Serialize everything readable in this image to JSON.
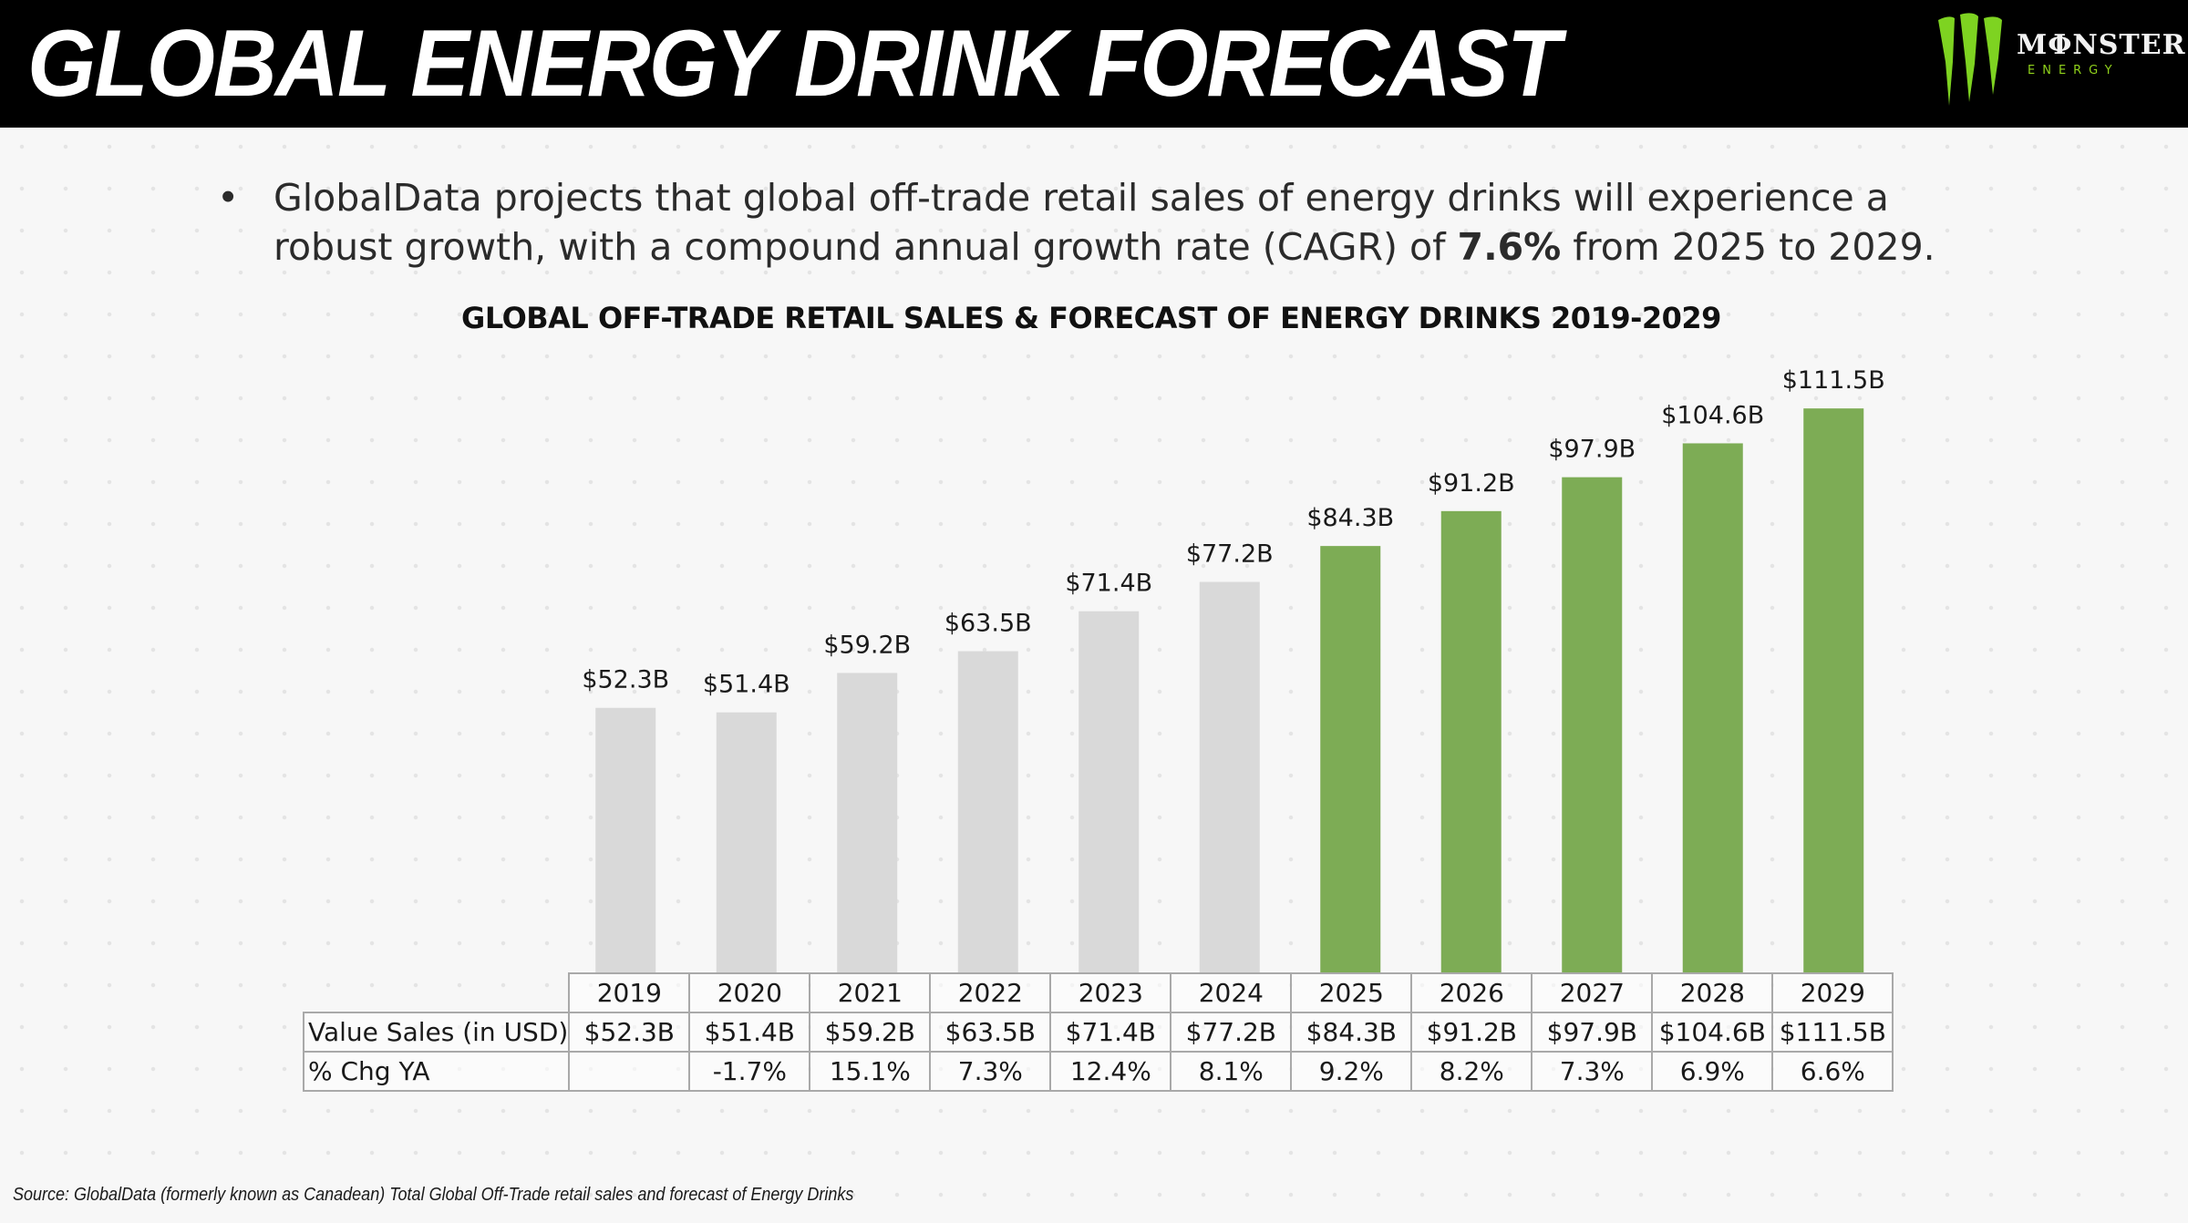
{
  "header": {
    "title": "GLOBAL ENERGY DRINK FORECAST",
    "logo": {
      "icon": "monster-claw-icon",
      "wordmark": "MΦNSTER",
      "sub": "ENERGY"
    }
  },
  "bullet": {
    "text_before": "GlobalData projects that global off-trade retail sales of energy drinks will experience a robust growth, with a compound annual growth rate (CAGR) of ",
    "highlight": "7.6%",
    "text_after": " from 2025 to 2029."
  },
  "chart_data": {
    "type": "bar",
    "title": "GLOBAL OFF-TRADE RETAIL SALES & FORECAST OF ENERGY DRINKS 2019-2029",
    "categories": [
      "2019",
      "2020",
      "2021",
      "2022",
      "2023",
      "2024",
      "2025",
      "2026",
      "2027",
      "2028",
      "2029"
    ],
    "values": [
      52.3,
      51.4,
      59.2,
      63.5,
      71.4,
      77.2,
      84.3,
      91.2,
      97.9,
      104.6,
      111.5
    ],
    "labels": [
      "$52.3B",
      "$51.4B",
      "$59.2B",
      "$63.5B",
      "$71.4B",
      "$77.2B",
      "$84.3B",
      "$91.2B",
      "$97.9B",
      "$104.6B",
      "$111.5B"
    ],
    "pct_change": [
      "",
      "-1.7%",
      "15.1%",
      "7.3%",
      "12.4%",
      "8.1%",
      "9.2%",
      "8.2%",
      "7.3%",
      "6.9%",
      "6.6%"
    ],
    "forecast_from": "2025",
    "colors": {
      "actual": "#d9d9d9",
      "forecast": "#7dac55"
    },
    "unit": "USD billions",
    "xlabel": "",
    "ylabel": "",
    "ylim": [
      0,
      111.5
    ],
    "grid": false,
    "legend": "none"
  },
  "table": {
    "row_labels": [
      "Value Sales (in USD)",
      "% Chg YA"
    ]
  },
  "source": "Source: GlobalData (formerly known as Canadean) Total Global Off-Trade retail sales and forecast of Energy Drinks"
}
